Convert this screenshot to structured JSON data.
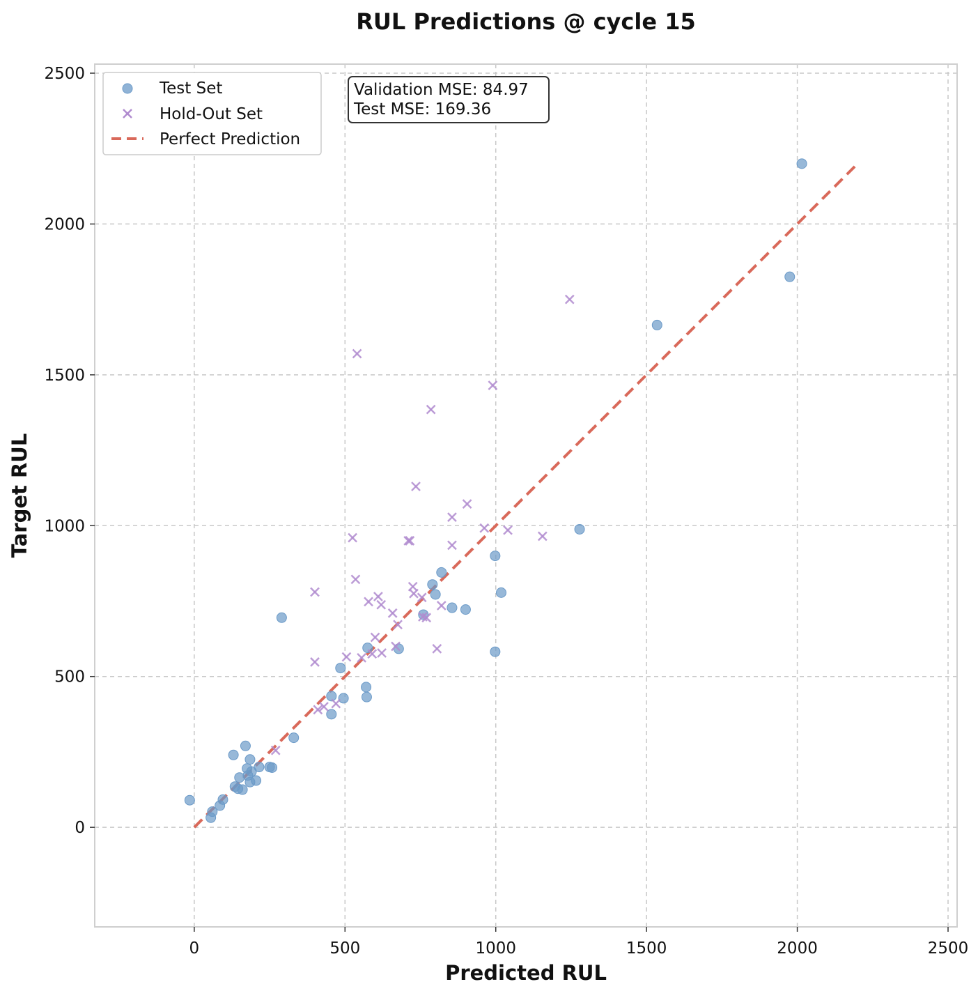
{
  "chart_data": {
    "type": "scatter",
    "title": "RUL Predictions @ cycle 15",
    "xlabel": "Predicted RUL",
    "ylabel": "Target RUL",
    "xlim": [
      -330,
      2530
    ],
    "ylim": [
      -330,
      2530
    ],
    "xticks": [
      0,
      500,
      1000,
      1500,
      2000,
      2500
    ],
    "yticks": [
      0,
      500,
      1000,
      1500,
      2000,
      2500
    ],
    "grid": true,
    "legend_position": "top-left",
    "annotation": {
      "line1": "Validation MSE: 84.97",
      "line2": "Test MSE: 169.36"
    },
    "series": [
      {
        "name": "Test Set",
        "marker": "circle",
        "color": "#6b9ac8",
        "points": [
          [
            -15,
            90
          ],
          [
            55,
            32
          ],
          [
            60,
            52
          ],
          [
            85,
            72
          ],
          [
            95,
            92
          ],
          [
            130,
            240
          ],
          [
            135,
            135
          ],
          [
            145,
            128
          ],
          [
            150,
            165
          ],
          [
            160,
            125
          ],
          [
            170,
            270
          ],
          [
            175,
            195
          ],
          [
            178,
            172
          ],
          [
            185,
            225
          ],
          [
            185,
            150
          ],
          [
            190,
            185
          ],
          [
            205,
            155
          ],
          [
            215,
            200
          ],
          [
            250,
            200
          ],
          [
            258,
            198
          ],
          [
            290,
            695
          ],
          [
            330,
            297
          ],
          [
            455,
            435
          ],
          [
            455,
            375
          ],
          [
            485,
            528
          ],
          [
            495,
            428
          ],
          [
            570,
            465
          ],
          [
            572,
            432
          ],
          [
            575,
            595
          ],
          [
            678,
            592
          ],
          [
            760,
            705
          ],
          [
            790,
            805
          ],
          [
            800,
            772
          ],
          [
            820,
            845
          ],
          [
            855,
            728
          ],
          [
            900,
            722
          ],
          [
            998,
            900
          ],
          [
            998,
            582
          ],
          [
            1018,
            778
          ],
          [
            1278,
            988
          ],
          [
            1535,
            1665
          ],
          [
            1975,
            1825
          ],
          [
            2015,
            2200
          ]
        ]
      },
      {
        "name": "Hold-Out Set",
        "marker": "x",
        "color": "#b08bcf",
        "points": [
          [
            270,
            255
          ],
          [
            400,
            548
          ],
          [
            400,
            780
          ],
          [
            410,
            390
          ],
          [
            430,
            400
          ],
          [
            470,
            410
          ],
          [
            505,
            565
          ],
          [
            525,
            960
          ],
          [
            535,
            822
          ],
          [
            540,
            1570
          ],
          [
            555,
            562
          ],
          [
            578,
            748
          ],
          [
            590,
            575
          ],
          [
            600,
            630
          ],
          [
            610,
            765
          ],
          [
            620,
            738
          ],
          [
            622,
            578
          ],
          [
            658,
            710
          ],
          [
            668,
            600
          ],
          [
            675,
            672
          ],
          [
            710,
            950
          ],
          [
            715,
            950
          ],
          [
            725,
            798
          ],
          [
            728,
            775
          ],
          [
            735,
            1130
          ],
          [
            755,
            762
          ],
          [
            758,
            698
          ],
          [
            770,
            695
          ],
          [
            785,
            1385
          ],
          [
            805,
            592
          ],
          [
            820,
            735
          ],
          [
            855,
            1028
          ],
          [
            855,
            935
          ],
          [
            905,
            1072
          ],
          [
            962,
            992
          ],
          [
            990,
            1465
          ],
          [
            1040,
            985
          ],
          [
            1155,
            965
          ],
          [
            1245,
            1750
          ]
        ]
      },
      {
        "name": "Perfect Prediction",
        "marker": "line",
        "color": "#d9695a",
        "points": [
          [
            0,
            0
          ],
          [
            2200,
            2200
          ]
        ]
      }
    ]
  }
}
